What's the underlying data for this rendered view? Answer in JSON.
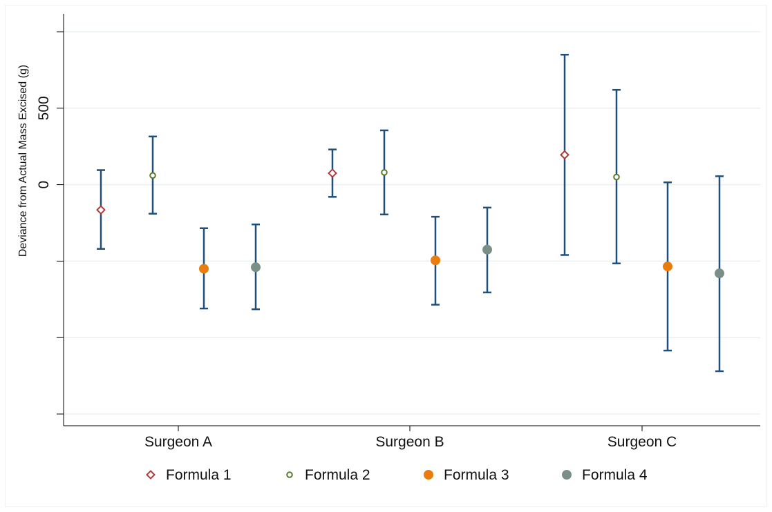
{
  "chart_data": {
    "type": "scatter",
    "subtype": "dot-with-error-bars",
    "title": "",
    "xlabel": "",
    "ylabel": "Deviance from Actual Mass Excised (g)",
    "ylim": [
      -1500,
      1000
    ],
    "yticks": [
      -1500,
      -1000,
      -500,
      0,
      500,
      1000
    ],
    "ytick_labels": [
      "",
      "",
      "",
      "0",
      "500",
      ""
    ],
    "categories": [
      "Surgeon A",
      "Surgeon B",
      "Surgeon C"
    ],
    "grid": true,
    "legend_position": "bottom",
    "error_bar_color": "#1f4e79",
    "series": [
      {
        "name": "Formula 1",
        "marker": "diamond-hollow",
        "color": "#b03a3a",
        "values": [
          -165,
          75,
          195
        ],
        "lower": [
          -420,
          -80,
          -460
        ],
        "upper": [
          95,
          230,
          850
        ]
      },
      {
        "name": "Formula 2",
        "marker": "circle-hollow",
        "color": "#5a7a2a",
        "values": [
          60,
          80,
          50
        ],
        "lower": [
          -190,
          -195,
          -515
        ],
        "upper": [
          315,
          355,
          620
        ]
      },
      {
        "name": "Formula 3",
        "marker": "circle-filled",
        "color": "#e87d0d",
        "values": [
          -550,
          -495,
          -535
        ],
        "lower": [
          -810,
          -785,
          -1085
        ],
        "upper": [
          -285,
          -210,
          15
        ]
      },
      {
        "name": "Formula 4",
        "marker": "circle-filled",
        "color": "#7a8f87",
        "values": [
          -540,
          -425,
          -580
        ],
        "lower": [
          -815,
          -705,
          -1220
        ],
        "upper": [
          -260,
          -150,
          55
        ]
      }
    ]
  }
}
